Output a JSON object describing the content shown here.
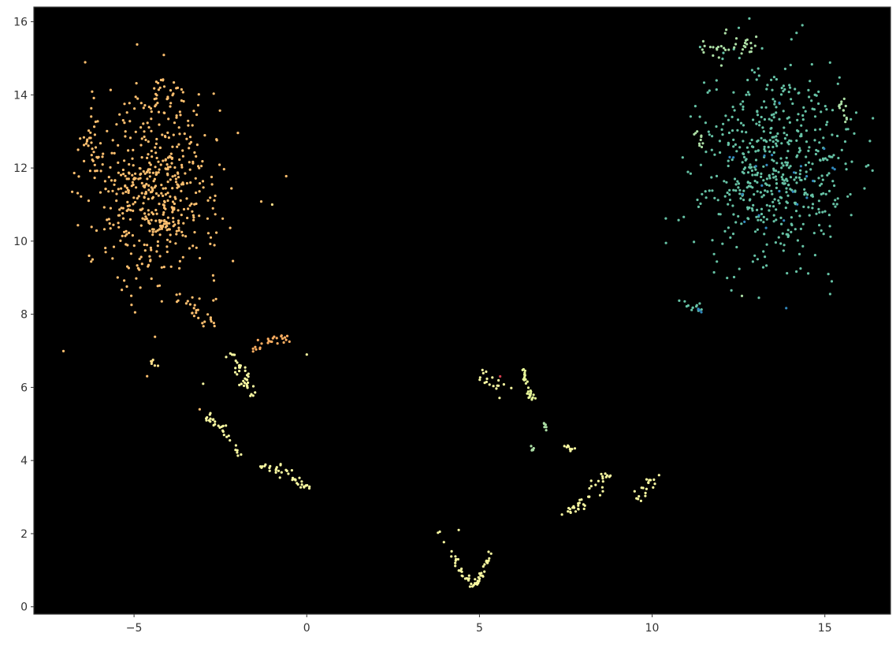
{
  "chart_data": {
    "type": "scatter",
    "title": "",
    "xlabel": "",
    "ylabel": "",
    "xlim": [
      -7.9,
      16.9
    ],
    "ylim": [
      -0.2,
      16.4
    ],
    "x_ticks": [
      -5,
      0,
      5,
      10,
      15
    ],
    "x_tick_labels": [
      "−5",
      "0",
      "5",
      "10",
      "15"
    ],
    "y_ticks": [
      0,
      2,
      4,
      6,
      8,
      10,
      12,
      14,
      16
    ],
    "y_tick_labels": [
      "0",
      "2",
      "4",
      "6",
      "8",
      "10",
      "12",
      "14",
      "16"
    ],
    "grid": false,
    "legend": "none",
    "background_color": "#000000",
    "colors": {
      "orange": "#fdbf6f",
      "light_yellow": "#fee08b",
      "pale_yellow": "#f7f7a0",
      "yellow_green": "#e6f598",
      "green": "#abdda4",
      "teal": "#66c2a5",
      "blue": "#3288bd",
      "red": "#d53e4f",
      "salmon": "#fdae61"
    },
    "clusters": [
      {
        "name_hint": "left-orange",
        "color": "orange",
        "cx": -4.4,
        "cy": 11.3,
        "sx": 1.15,
        "sy": 1.45,
        "n": 520
      },
      {
        "name_hint": "left-orange-top",
        "color": "orange",
        "cx": -4.2,
        "cy": 14.0,
        "sx": 0.55,
        "sy": 0.4,
        "n": 40
      },
      {
        "name_hint": "left-orange-leftedge",
        "color": "orange",
        "cx": -6.2,
        "cy": 12.6,
        "sx": 0.2,
        "sy": 0.4,
        "n": 25
      },
      {
        "name_hint": "right-teal",
        "color": "teal",
        "cx": 13.5,
        "cy": 12.1,
        "sx": 1.25,
        "sy": 1.55,
        "n": 560
      },
      {
        "name_hint": "right-teal-top",
        "color": "green",
        "cx": 12.3,
        "cy": 15.3,
        "sx": 0.55,
        "sy": 0.2,
        "n": 35
      },
      {
        "name_hint": "right-teal-blue",
        "color": "blue",
        "cx": 13.6,
        "cy": 11.4,
        "sx": 1.0,
        "sy": 1.2,
        "n": 25
      }
    ],
    "strands": [
      {
        "color": "orange",
        "points": [
          [
            -3.8,
            8.6
          ],
          [
            -3.2,
            8.1
          ],
          [
            -2.6,
            7.7
          ]
        ],
        "n": 25,
        "jitter": 0.12
      },
      {
        "color": "salmon",
        "points": [
          [
            -1.6,
            7.0
          ],
          [
            -1.0,
            7.3
          ],
          [
            -0.4,
            7.4
          ]
        ],
        "n": 25,
        "jitter": 0.06
      },
      {
        "color": "pale_yellow",
        "points": [
          [
            -2.2,
            6.9
          ],
          [
            -1.8,
            6.3
          ],
          [
            -1.6,
            5.8
          ]
        ],
        "n": 40,
        "jitter": 0.1
      },
      {
        "color": "pale_yellow",
        "points": [
          [
            -3.0,
            5.3
          ],
          [
            -2.4,
            4.8
          ],
          [
            -1.9,
            4.2
          ]
        ],
        "n": 30,
        "jitter": 0.08
      },
      {
        "color": "pale_yellow",
        "points": [
          [
            -1.4,
            3.9
          ],
          [
            -0.8,
            3.8
          ],
          [
            -0.4,
            3.5
          ],
          [
            0.0,
            3.3
          ]
        ],
        "n": 40,
        "jitter": 0.07
      },
      {
        "color": "light_yellow",
        "points": [
          [
            -4.5,
            6.7
          ],
          [
            -4.3,
            6.6
          ]
        ],
        "n": 6,
        "jitter": 0.05
      },
      {
        "color": "pale_yellow",
        "points": [
          [
            5.1,
            6.4
          ],
          [
            5.4,
            6.0
          ],
          [
            5.7,
            5.9
          ]
        ],
        "n": 18,
        "jitter": 0.12
      },
      {
        "color": "yellow_green",
        "points": [
          [
            6.3,
            6.5
          ],
          [
            6.35,
            6.0
          ],
          [
            6.6,
            5.6
          ]
        ],
        "n": 30,
        "jitter": 0.05
      },
      {
        "color": "pale_yellow",
        "points": [
          [
            3.8,
            2.1
          ],
          [
            4.2,
            1.5
          ],
          [
            4.5,
            0.9
          ],
          [
            4.8,
            0.6
          ],
          [
            5.1,
            0.9
          ],
          [
            5.3,
            1.5
          ]
        ],
        "n": 55,
        "jitter": 0.05
      },
      {
        "color": "pale_yellow",
        "points": [
          [
            7.5,
            2.5
          ],
          [
            8.0,
            2.8
          ],
          [
            8.5,
            3.3
          ],
          [
            8.7,
            3.8
          ]
        ],
        "n": 40,
        "jitter": 0.1
      },
      {
        "color": "pale_yellow",
        "points": [
          [
            9.6,
            3.0
          ],
          [
            9.8,
            3.2
          ],
          [
            10.0,
            3.5
          ]
        ],
        "n": 18,
        "jitter": 0.08
      },
      {
        "color": "pale_yellow",
        "points": [
          [
            7.4,
            4.4
          ],
          [
            7.7,
            4.3
          ]
        ],
        "n": 10,
        "jitter": 0.05
      },
      {
        "color": "green",
        "points": [
          [
            6.9,
            5.3
          ],
          [
            6.9,
            4.8
          ]
        ],
        "n": 6,
        "jitter": 0.04
      },
      {
        "color": "green",
        "points": [
          [
            6.4,
            4.2
          ],
          [
            6.6,
            4.4
          ]
        ],
        "n": 5,
        "jitter": 0.04
      },
      {
        "color": "teal",
        "points": [
          [
            10.8,
            8.4
          ],
          [
            11.1,
            8.1
          ],
          [
            11.4,
            8.2
          ]
        ],
        "n": 12,
        "jitter": 0.06
      },
      {
        "color": "blue",
        "points": [
          [
            11.3,
            8.2
          ],
          [
            11.4,
            8.1
          ]
        ],
        "n": 4,
        "jitter": 0.03
      },
      {
        "color": "green",
        "points": [
          [
            15.4,
            13.8
          ],
          [
            15.6,
            13.3
          ]
        ],
        "n": 14,
        "jitter": 0.08
      },
      {
        "color": "green",
        "points": [
          [
            11.3,
            12.9
          ],
          [
            11.5,
            12.6
          ]
        ],
        "n": 10,
        "jitter": 0.08
      }
    ],
    "points": [
      {
        "x": -1.0,
        "y": 11.0,
        "color": "light_yellow"
      },
      {
        "x": 0.0,
        "y": 6.9,
        "color": "pale_yellow"
      },
      {
        "x": -6.3,
        "y": 9.6,
        "color": "orange"
      },
      {
        "x": -6.2,
        "y": 9.5,
        "color": "orange"
      },
      {
        "x": -3.1,
        "y": 5.4,
        "color": "orange"
      },
      {
        "x": -3.0,
        "y": 6.1,
        "color": "pale_yellow"
      },
      {
        "x": 5.6,
        "y": 6.3,
        "color": "red"
      },
      {
        "x": 10.4,
        "y": 9.95,
        "color": "teal"
      },
      {
        "x": 15.2,
        "y": 8.9,
        "color": "teal"
      },
      {
        "x": 15.1,
        "y": 9.1,
        "color": "teal"
      },
      {
        "x": 12.6,
        "y": 8.5,
        "color": "green"
      },
      {
        "x": 10.2,
        "y": 3.6,
        "color": "pale_yellow"
      },
      {
        "x": 4.4,
        "y": 2.1,
        "color": "pale_yellow"
      }
    ],
    "seed": 7
  }
}
